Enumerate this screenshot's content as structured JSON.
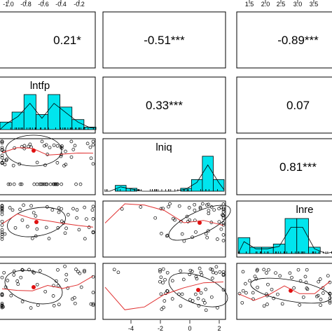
{
  "chart_data": {
    "type": "scatter-matrix",
    "variables": [
      "lntfp",
      "lniq",
      "lnre"
    ],
    "hidden_first_variable_present": true,
    "correlations": [
      {
        "row": 0,
        "col": 1,
        "text": "0.21*"
      },
      {
        "row": 0,
        "col": 2,
        "text": "-0.51***"
      },
      {
        "row": 0,
        "col": 3,
        "text": "-0.89***"
      },
      {
        "row": 1,
        "col": 2,
        "text": "0.33***"
      },
      {
        "row": 1,
        "col": 3,
        "text": "0.07"
      },
      {
        "row": 2,
        "col": 3,
        "text": "0.81***"
      }
    ],
    "top_axis": {
      "lntfp_ticks": [
        "-1.0",
        "-0.8",
        "-0.6",
        "-0.4",
        "-0.2"
      ],
      "lnre_ticks": [
        "1.5",
        "2.0",
        "2.5",
        "3.0",
        "3.5"
      ]
    },
    "bottom_axis": {
      "lniq_ticks": [
        "-4",
        "-2",
        "0",
        "2"
      ]
    },
    "histograms": {
      "lntfp": {
        "range": [
          -1.1,
          -0.1
        ],
        "counts": [
          3,
          7,
          14,
          6,
          14,
          9,
          4,
          1
        ]
      },
      "lniq": {
        "range": [
          -5.5,
          2.6
        ],
        "counts": [
          0,
          2,
          1,
          0,
          0,
          0,
          0,
          1,
          4,
          12,
          4
        ]
      },
      "lnre": {
        "range": [
          1.0,
          3.7
        ],
        "counts": [
          5,
          2,
          2,
          3,
          11,
          11,
          2,
          0
        ]
      }
    },
    "scatter_style": {
      "point_color": "#000000",
      "bar_color": "#00e5ee",
      "loess_color": "#e03030",
      "center_color": "#e01010"
    }
  }
}
